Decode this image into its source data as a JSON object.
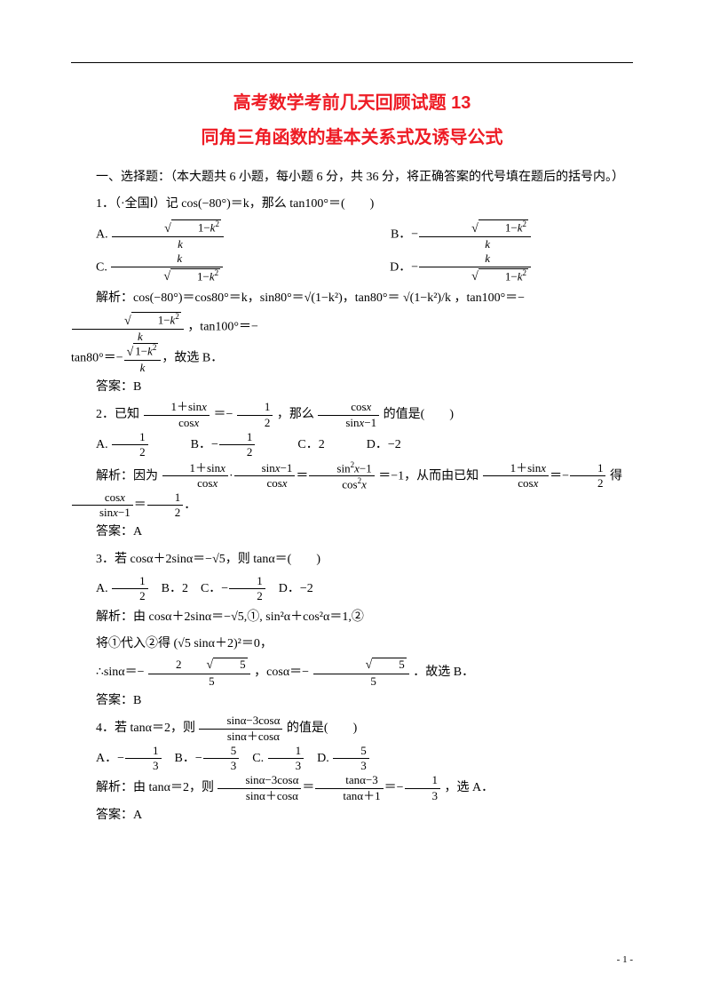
{
  "colors": {
    "accent": "#ee1c25",
    "text": "#000000",
    "background": "#ffffff"
  },
  "title": "高考数学考前几天回顾试题 13",
  "subtitle": "同角三角函数的基本关系式及诱导公式",
  "section_header": "一、选择题：（本大题共 6 小题，每小题 6 分，共 36 分，将正确答案的代号填在题后的括号内。）",
  "q1": {
    "stem": "1．（·全国Ⅰ）记 cos(−80°)＝k，那么 tan100°＝(　　)",
    "opts": {
      "A": "√(1−k²) / k",
      "B": "−√(1−k²) / k",
      "C": "k / √(1−k²)",
      "D": "−k / √(1−k²)"
    },
    "analysis_prefix": "解析：cos(−80°)＝cos80°＝k，sin80°＝√(1−k²)，tan80°＝ √(1−k²)/k ，tan100°＝−",
    "analysis_line2": "tan80°＝− √(1−k²)/k ，故选 B．",
    "answer": "答案：B"
  },
  "q2": {
    "stem_prefix": "2．已知",
    "stem_mid": "＝−",
    "stem_suffix": "，那么",
    "stem_end": "的值是(　　)",
    "opts": {
      "A": "1/2",
      "B": "−1/2",
      "C": "2",
      "D": "−2"
    },
    "analysis_prefix": "解析：因为",
    "analysis_mid": "＝−1，从而由已知",
    "analysis_end": "得",
    "answer": "答案：A"
  },
  "q3": {
    "stem": "3．若 cosα＋2sinα＝−√5，则 tanα＝(　　)",
    "opts": {
      "A": "1/2",
      "B": "2",
      "C": "−1/2",
      "D": "−2"
    },
    "analysis1": "解析：由 cosα＋2sinα＝−√5,①, sin²α＋cos²α＝1,②",
    "analysis2": "将①代入②得 (√5 sinα＋2)²＝0，",
    "analysis3_prefix": "∴sinα＝−",
    "analysis3_mid": "，cosα＝−",
    "analysis3_end": "．故选 B．",
    "answer": "答案：B"
  },
  "q4": {
    "stem_prefix": "4．若 tanα＝2，则",
    "stem_end": "的值是(　　)",
    "opts": {
      "A": "−1/3",
      "B": "−5/3",
      "C": "1/3",
      "D": "5/3"
    },
    "analysis_prefix": "解析：由 tanα＝2，则",
    "analysis_end": "，选 A．",
    "answer": "答案：A"
  },
  "page_number": "- 1 -"
}
